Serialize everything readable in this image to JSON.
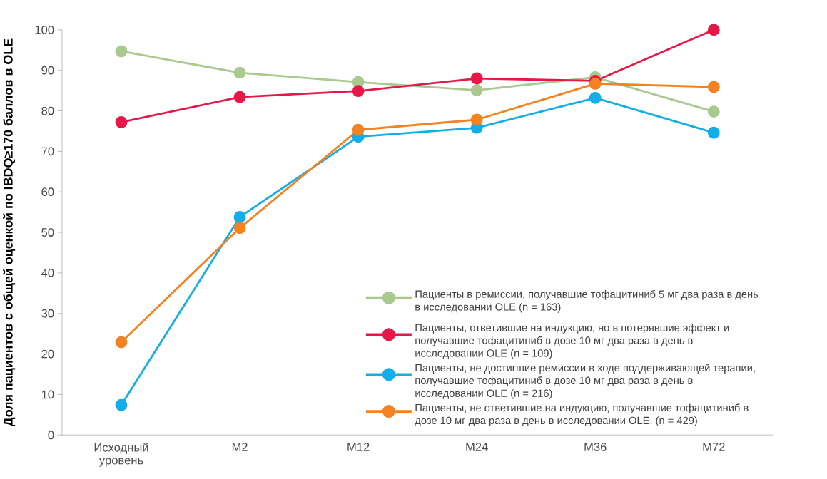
{
  "chart_data": {
    "type": "line",
    "ylabel": "Доля пациентов с общей оценкой по IBDQ≥170 баллов в OLE",
    "categories": [
      "Исходный уровень",
      "M2",
      "M12",
      "M24",
      "M36",
      "M72"
    ],
    "series": [
      {
        "name": "Пациенты в ремиссии, получавшие тофацитиниб 5 мг два раза в день в исследовании OLE (n = 163)",
        "color": "#a9c98f",
        "values": [
          94.7,
          89.4,
          87.1,
          85.1,
          88.3,
          79.8
        ]
      },
      {
        "name": "Пациенты, ответившие на индукцию, но в потерявшие эффект и получавшие тофацитиниб в дозе 10 мг два раза в день в исследовании OLE (n = 109)",
        "color": "#e8174a",
        "values": [
          77.2,
          83.4,
          84.9,
          88.0,
          87.4,
          100
        ]
      },
      {
        "name": "Пациенты, не достигшие ремиссии в ходе поддерживающей терапии, получавшие тофацитиниб в дозе 10 мг два раза в день в исследовании OLE (n = 216)",
        "color": "#13aee8",
        "values": [
          7.4,
          53.8,
          73.6,
          75.8,
          83.2,
          74.6
        ]
      },
      {
        "name": "Пациенты, не ответившие на индукцию, получавшие тофацитиниб в дозе 10 мг два раза в день в исследовании OLE. (n = 429)",
        "color": "#f58220",
        "values": [
          22.9,
          51.1,
          75.3,
          77.8,
          86.7,
          85.9
        ]
      }
    ],
    "ylim": [
      0,
      100
    ],
    "yticks": [
      0,
      10,
      20,
      30,
      40,
      50,
      60,
      70,
      80,
      90,
      100
    ],
    "legend": "bottom right",
    "marker": "circle",
    "line_style": "solid",
    "grid": false
  }
}
